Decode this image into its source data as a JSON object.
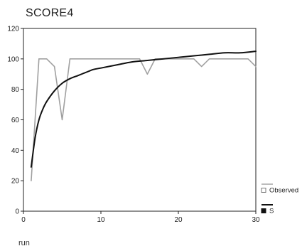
{
  "chart_data": {
    "type": "line",
    "title": "SCORE4",
    "xlabel": "run",
    "ylabel": "",
    "xlim": [
      0,
      30
    ],
    "ylim": [
      0,
      120
    ],
    "xticks": [
      0,
      10,
      20,
      30
    ],
    "yticks": [
      0,
      20,
      40,
      60,
      80,
      100,
      120
    ],
    "legend_position": "right",
    "grid": false,
    "series": [
      {
        "name": "Observed",
        "style": "gray-line",
        "color": "#a0a0a0",
        "x": [
          1,
          2,
          3,
          4,
          5,
          6,
          7,
          8,
          9,
          10,
          11,
          12,
          13,
          14,
          15,
          16,
          17,
          18,
          19,
          20,
          21,
          22,
          23,
          24,
          25,
          26,
          27,
          28,
          29,
          30
        ],
        "y": [
          20,
          100,
          100,
          95,
          60,
          100,
          100,
          100,
          100,
          100,
          100,
          100,
          100,
          100,
          100,
          90,
          100,
          100,
          100,
          100,
          100,
          100,
          95,
          100,
          100,
          100,
          100,
          100,
          100,
          95
        ]
      },
      {
        "name": "S",
        "style": "black-curve",
        "color": "#111111",
        "x": [
          1,
          1.5,
          2,
          2.5,
          3,
          4,
          5,
          6,
          7,
          8,
          9,
          10,
          12,
          14,
          16,
          18,
          20,
          22,
          24,
          26,
          28,
          30
        ],
        "y": [
          29,
          48,
          60,
          67,
          72,
          79,
          84,
          87,
          89,
          91,
          93,
          94,
          96,
          98,
          99,
          100,
          101,
          102,
          103,
          104,
          104,
          105
        ]
      }
    ]
  }
}
